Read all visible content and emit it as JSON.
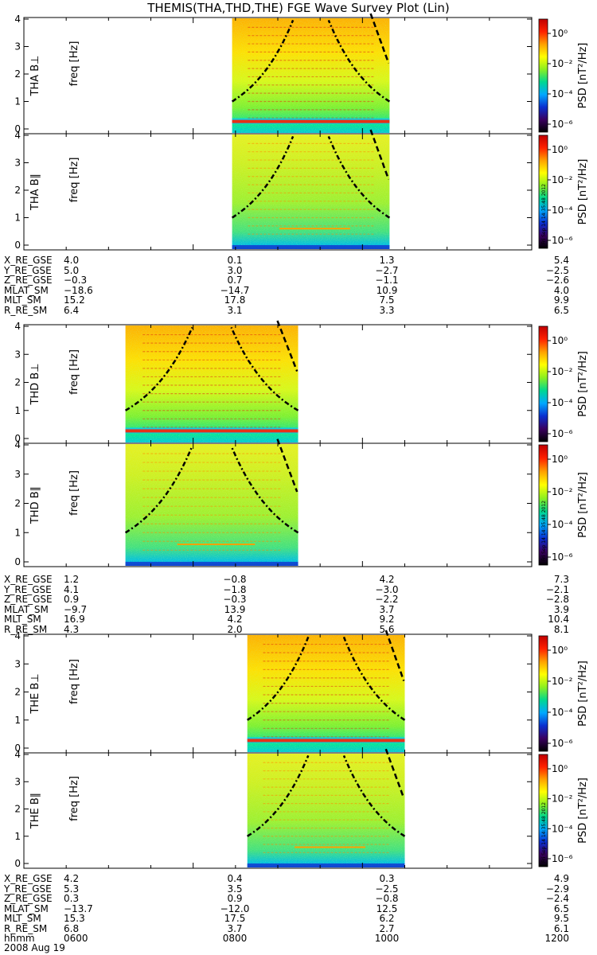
{
  "title": "THEMIS(THA,THD,THE) FGE Wave Survey Plot (Lin)",
  "colorbar": {
    "label": "PSD [nT²/Hz]",
    "ticks": [
      "10⁰",
      "10⁻²",
      "10⁻⁴",
      "10⁻⁶"
    ],
    "stamp": "Fri Sep 14 14:35:48 2012"
  },
  "colors": {
    "scale": [
      "#000000",
      "#3a0060",
      "#0a30d0",
      "#00a8ff",
      "#00d890",
      "#8cf020",
      "#ffff00",
      "#ffa000",
      "#ff2000",
      "#c00000"
    ]
  },
  "chart_data": {
    "type": "heatmap",
    "x_range": [
      600,
      1200
    ],
    "x_tick_labels": [
      "0600",
      "0800",
      "1000",
      "1200"
    ],
    "y_range": [
      0,
      4
    ],
    "y_tick_labels": [
      "0",
      "1",
      "2",
      "3",
      "4"
    ],
    "panels": [
      {
        "probe": "THA",
        "component": "B⊥",
        "label": "THA B⊥",
        "ylabel": "freq [Hz]",
        "data_start": 0.41,
        "data_end": 0.72,
        "hot_band": true
      },
      {
        "probe": "THA",
        "component": "B∥",
        "label": "THA B∥",
        "ylabel": "freq [Hz]",
        "data_start": 0.41,
        "data_end": 0.72,
        "hot_band": false
      },
      {
        "probe": "THD",
        "component": "B⊥",
        "label": "THD B⊥",
        "ylabel": "freq [Hz]",
        "data_start": 0.2,
        "data_end": 0.54,
        "hot_band": true
      },
      {
        "probe": "THD",
        "component": "B∥",
        "label": "THD B∥",
        "ylabel": "freq [Hz]",
        "data_start": 0.2,
        "data_end": 0.54,
        "hot_band": false
      },
      {
        "probe": "THE",
        "component": "B⊥",
        "label": "THE B⊥",
        "ylabel": "freq [Hz]",
        "data_start": 0.44,
        "data_end": 0.75,
        "hot_band": true
      },
      {
        "probe": "THE",
        "component": "B∥",
        "label": "THE B∥",
        "ylabel": "freq [Hz]",
        "data_start": 0.44,
        "data_end": 0.75,
        "hot_band": false
      }
    ],
    "ephemeris": [
      {
        "probe": "THA",
        "rows": [
          {
            "name": "X_RE_GSE",
            "values": [
              "4.0",
              "0.1",
              "1.3",
              "5.4"
            ]
          },
          {
            "name": "Y_RE_GSE",
            "values": [
              "5.0",
              "3.0",
              "−2.7",
              "−2.5"
            ]
          },
          {
            "name": "Z_RE_GSE",
            "values": [
              "−0.3",
              "0.7",
              "−1.1",
              "−2.6"
            ]
          },
          {
            "name": "MLAT_SM",
            "values": [
              "−18.6",
              "−14.7",
              "10.9",
              "4.0"
            ]
          },
          {
            "name": "MLT_SM",
            "values": [
              "15.2",
              "17.8",
              "7.5",
              "9.9"
            ]
          },
          {
            "name": "R_RE_SM",
            "values": [
              "6.4",
              "3.1",
              "3.3",
              "6.5"
            ]
          }
        ]
      },
      {
        "probe": "THD",
        "rows": [
          {
            "name": "X_RE_GSE",
            "values": [
              "1.2",
              "−0.8",
              "4.2",
              "7.3"
            ]
          },
          {
            "name": "Y_RE_GSE",
            "values": [
              "4.1",
              "−1.8",
              "−3.0",
              "−2.1"
            ]
          },
          {
            "name": "Z_RE_GSE",
            "values": [
              "0.9",
              "−0.3",
              "−2.2",
              "−2.8"
            ]
          },
          {
            "name": "MLAT_SM",
            "values": [
              "−9.7",
              "13.9",
              "3.7",
              "3.9"
            ]
          },
          {
            "name": "MLT_SM",
            "values": [
              "16.9",
              "4.2",
              "9.2",
              "10.4"
            ]
          },
          {
            "name": "R_RE_SM",
            "values": [
              "4.3",
              "2.0",
              "5.6",
              "8.1"
            ]
          }
        ]
      },
      {
        "probe": "THE",
        "rows": [
          {
            "name": "X_RE_GSE",
            "values": [
              "4.2",
              "0.4",
              "0.3",
              "4.9"
            ]
          },
          {
            "name": "Y_RE_GSE",
            "values": [
              "5.3",
              "3.5",
              "−2.5",
              "−2.9"
            ]
          },
          {
            "name": "Z_RE_GSE",
            "values": [
              "0.3",
              "0.9",
              "−0.8",
              "−2.4"
            ]
          },
          {
            "name": "MLAT_SM",
            "values": [
              "−13.7",
              "−12.0",
              "12.5",
              "6.5"
            ]
          },
          {
            "name": "MLT_SM",
            "values": [
              "15.3",
              "17.5",
              "6.2",
              "9.5"
            ]
          },
          {
            "name": "R_RE_SM",
            "values": [
              "6.8",
              "3.7",
              "2.7",
              "6.1"
            ]
          }
        ]
      }
    ],
    "time_axis": {
      "name": "hhmm",
      "values": [
        "0600",
        "0800",
        "1000",
        "1200"
      ]
    },
    "date": "2008 Aug 19"
  }
}
